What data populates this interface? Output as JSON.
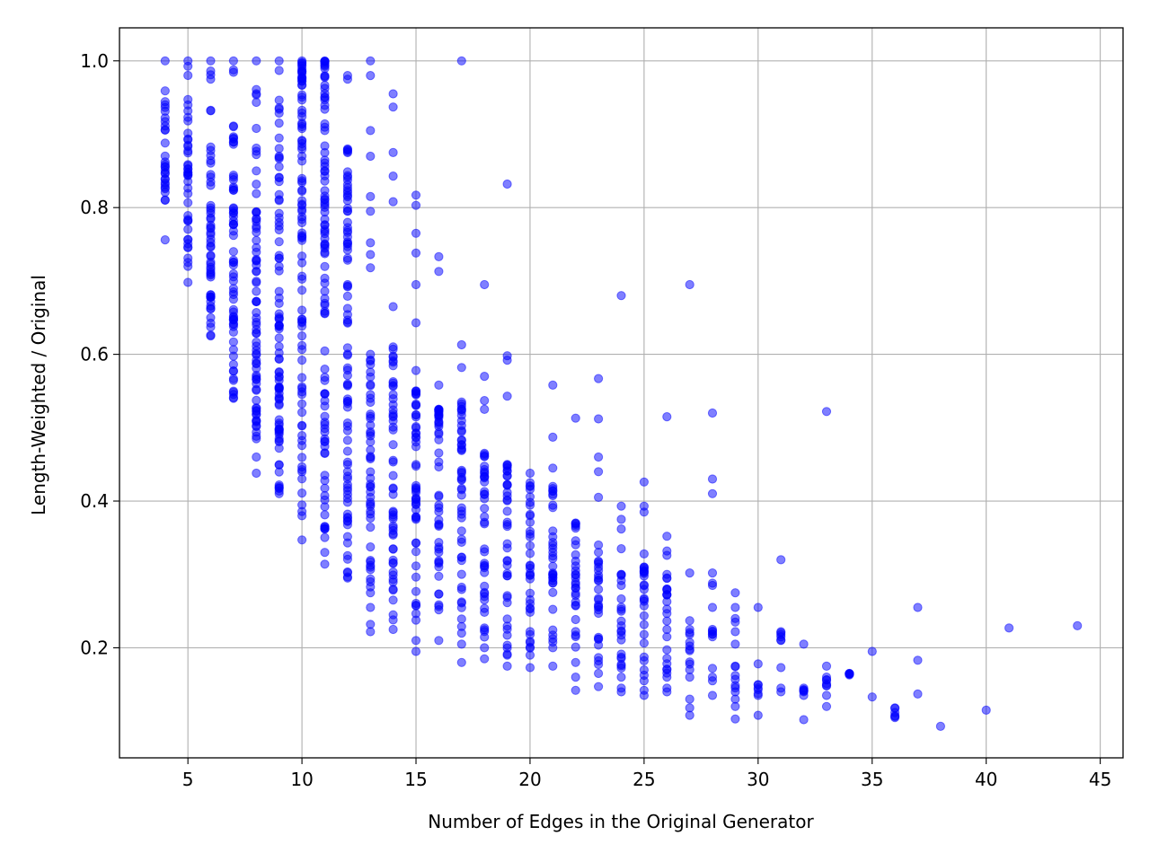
{
  "chart_data": {
    "type": "scatter",
    "title": "",
    "xlabel": "Number of Edges in the Original Generator",
    "ylabel": "Length-Weighted / Original",
    "xlim": [
      2,
      46
    ],
    "ylim": [
      0.05,
      1.045
    ],
    "x_ticks": [
      5,
      10,
      15,
      20,
      25,
      30,
      35,
      40,
      45
    ],
    "x_tick_labels": [
      "5",
      "10",
      "15",
      "20",
      "25",
      "30",
      "35",
      "40",
      "45"
    ],
    "y_ticks": [
      0.2,
      0.4,
      0.6,
      0.8,
      1.0
    ],
    "y_tick_labels": [
      "0.2",
      "0.4",
      "0.6",
      "0.8",
      "1.0"
    ],
    "grid": true,
    "point_color": "#0000ff",
    "point_alpha": 0.5,
    "columns": [
      {
        "x": 4,
        "y_min": 0.81,
        "y_max": 1.0,
        "outliers": [
          0.756
        ]
      },
      {
        "x": 5,
        "y_min": 0.72,
        "y_max": 1.0,
        "outliers": [
          0.698
        ]
      },
      {
        "x": 6,
        "y_min": 0.625,
        "y_max": 1.0,
        "outliers": []
      },
      {
        "x": 7,
        "y_min": 0.54,
        "y_max": 1.0,
        "outliers": []
      },
      {
        "x": 8,
        "y_min": 0.485,
        "y_max": 1.0,
        "outliers": [
          0.46,
          0.438
        ]
      },
      {
        "x": 9,
        "y_min": 0.41,
        "y_max": 1.0,
        "outliers": []
      },
      {
        "x": 10,
        "y_min": 0.38,
        "y_max": 1.0,
        "outliers": [
          0.347
        ]
      },
      {
        "x": 11,
        "y_min": 0.33,
        "y_max": 1.0,
        "outliers": [
          0.314
        ]
      },
      {
        "x": 12,
        "y_min": 0.295,
        "y_max": 0.88,
        "outliers": [
          0.98,
          0.975
        ]
      },
      {
        "x": 13,
        "y_min": 0.275,
        "y_max": 0.6,
        "outliers": [
          1.0,
          0.98,
          0.905,
          0.87,
          0.815,
          0.795,
          0.752,
          0.736,
          0.718,
          0.255,
          0.232,
          0.222
        ]
      },
      {
        "x": 14,
        "y_min": 0.265,
        "y_max": 0.61,
        "outliers": [
          0.955,
          0.937,
          0.875,
          0.843,
          0.808,
          0.665,
          0.245,
          0.238,
          0.225
        ]
      },
      {
        "x": 15,
        "y_min": 0.21,
        "y_max": 0.55,
        "outliers": [
          0.817,
          0.803,
          0.765,
          0.738,
          0.695,
          0.643,
          0.578,
          0.195
        ]
      },
      {
        "x": 16,
        "y_min": 0.21,
        "y_max": 0.525,
        "outliers": [
          0.733,
          0.713,
          0.558
        ]
      },
      {
        "x": 17,
        "y_min": 0.22,
        "y_max": 0.535,
        "outliers": [
          1.0,
          0.613,
          0.582,
          0.205,
          0.18
        ]
      },
      {
        "x": 18,
        "y_min": 0.2,
        "y_max": 0.465,
        "outliers": [
          0.695,
          0.57,
          0.537,
          0.525,
          0.185
        ]
      },
      {
        "x": 19,
        "y_min": 0.19,
        "y_max": 0.45,
        "outliers": [
          0.832,
          0.598,
          0.592,
          0.543,
          0.175
        ]
      },
      {
        "x": 20,
        "y_min": 0.19,
        "y_max": 0.425,
        "outliers": [
          0.438,
          0.173
        ]
      },
      {
        "x": 21,
        "y_min": 0.2,
        "y_max": 0.42,
        "outliers": [
          0.558,
          0.487,
          0.445,
          0.175
        ]
      },
      {
        "x": 22,
        "y_min": 0.18,
        "y_max": 0.37,
        "outliers": [
          0.513,
          0.16,
          0.142
        ]
      },
      {
        "x": 23,
        "y_min": 0.165,
        "y_max": 0.34,
        "outliers": [
          0.567,
          0.512,
          0.46,
          0.44,
          0.405,
          0.147
        ]
      },
      {
        "x": 24,
        "y_min": 0.16,
        "y_max": 0.3,
        "outliers": [
          0.68,
          0.393,
          0.375,
          0.362,
          0.335,
          0.145,
          0.14
        ]
      },
      {
        "x": 25,
        "y_min": 0.155,
        "y_max": 0.31,
        "outliers": [
          0.426,
          0.393,
          0.385,
          0.328,
          0.142,
          0.135
        ]
      },
      {
        "x": 26,
        "y_min": 0.16,
        "y_max": 0.3,
        "outliers": [
          0.515,
          0.352,
          0.332,
          0.326,
          0.145,
          0.14
        ]
      },
      {
        "x": 27,
        "y_min": 0.16,
        "y_max": 0.225,
        "outliers": [
          0.695,
          0.302,
          0.237,
          0.13,
          0.118,
          0.108
        ]
      },
      {
        "x": 28,
        "y_min": 0.215,
        "y_max": 0.225,
        "outliers": [
          0.52,
          0.43,
          0.41,
          0.302,
          0.288,
          0.285,
          0.255,
          0.172,
          0.16,
          0.155,
          0.135
        ]
      },
      {
        "x": 29,
        "y_min": 0.14,
        "y_max": 0.175,
        "outliers": [
          0.275,
          0.255,
          0.24,
          0.235,
          0.222,
          0.205,
          0.13,
          0.12,
          0.103
        ]
      },
      {
        "x": 30,
        "y_min": 0.135,
        "y_max": 0.15,
        "outliers": [
          0.255,
          0.178,
          0.108
        ]
      },
      {
        "x": 31,
        "y_min": 0.21,
        "y_max": 0.222,
        "outliers": [
          0.32,
          0.173,
          0.145,
          0.14
        ]
      },
      {
        "x": 32,
        "y_min": 0.135,
        "y_max": 0.145,
        "outliers": [
          0.205,
          0.102
        ]
      },
      {
        "x": 33,
        "y_min": 0.148,
        "y_max": 0.16,
        "outliers": [
          0.522,
          0.175,
          0.135,
          0.12
        ]
      },
      {
        "x": 34,
        "y_min": 0.163,
        "y_max": 0.165,
        "outliers": []
      },
      {
        "x": 35,
        "y_min": 0.195,
        "y_max": 0.195,
        "outliers": [
          0.133
        ]
      },
      {
        "x": 36,
        "y_min": 0.105,
        "y_max": 0.118,
        "outliers": []
      },
      {
        "x": 37,
        "y_min": 0.183,
        "y_max": 0.183,
        "outliers": [
          0.255,
          0.137
        ]
      },
      {
        "x": 38,
        "y_min": 0.093,
        "y_max": 0.093,
        "outliers": []
      },
      {
        "x": 40,
        "y_min": 0.115,
        "y_max": 0.115,
        "outliers": []
      },
      {
        "x": 41,
        "y_min": 0.227,
        "y_max": 0.227,
        "outliers": []
      },
      {
        "x": 44,
        "y_min": 0.23,
        "y_max": 0.23,
        "outliers": []
      }
    ]
  }
}
